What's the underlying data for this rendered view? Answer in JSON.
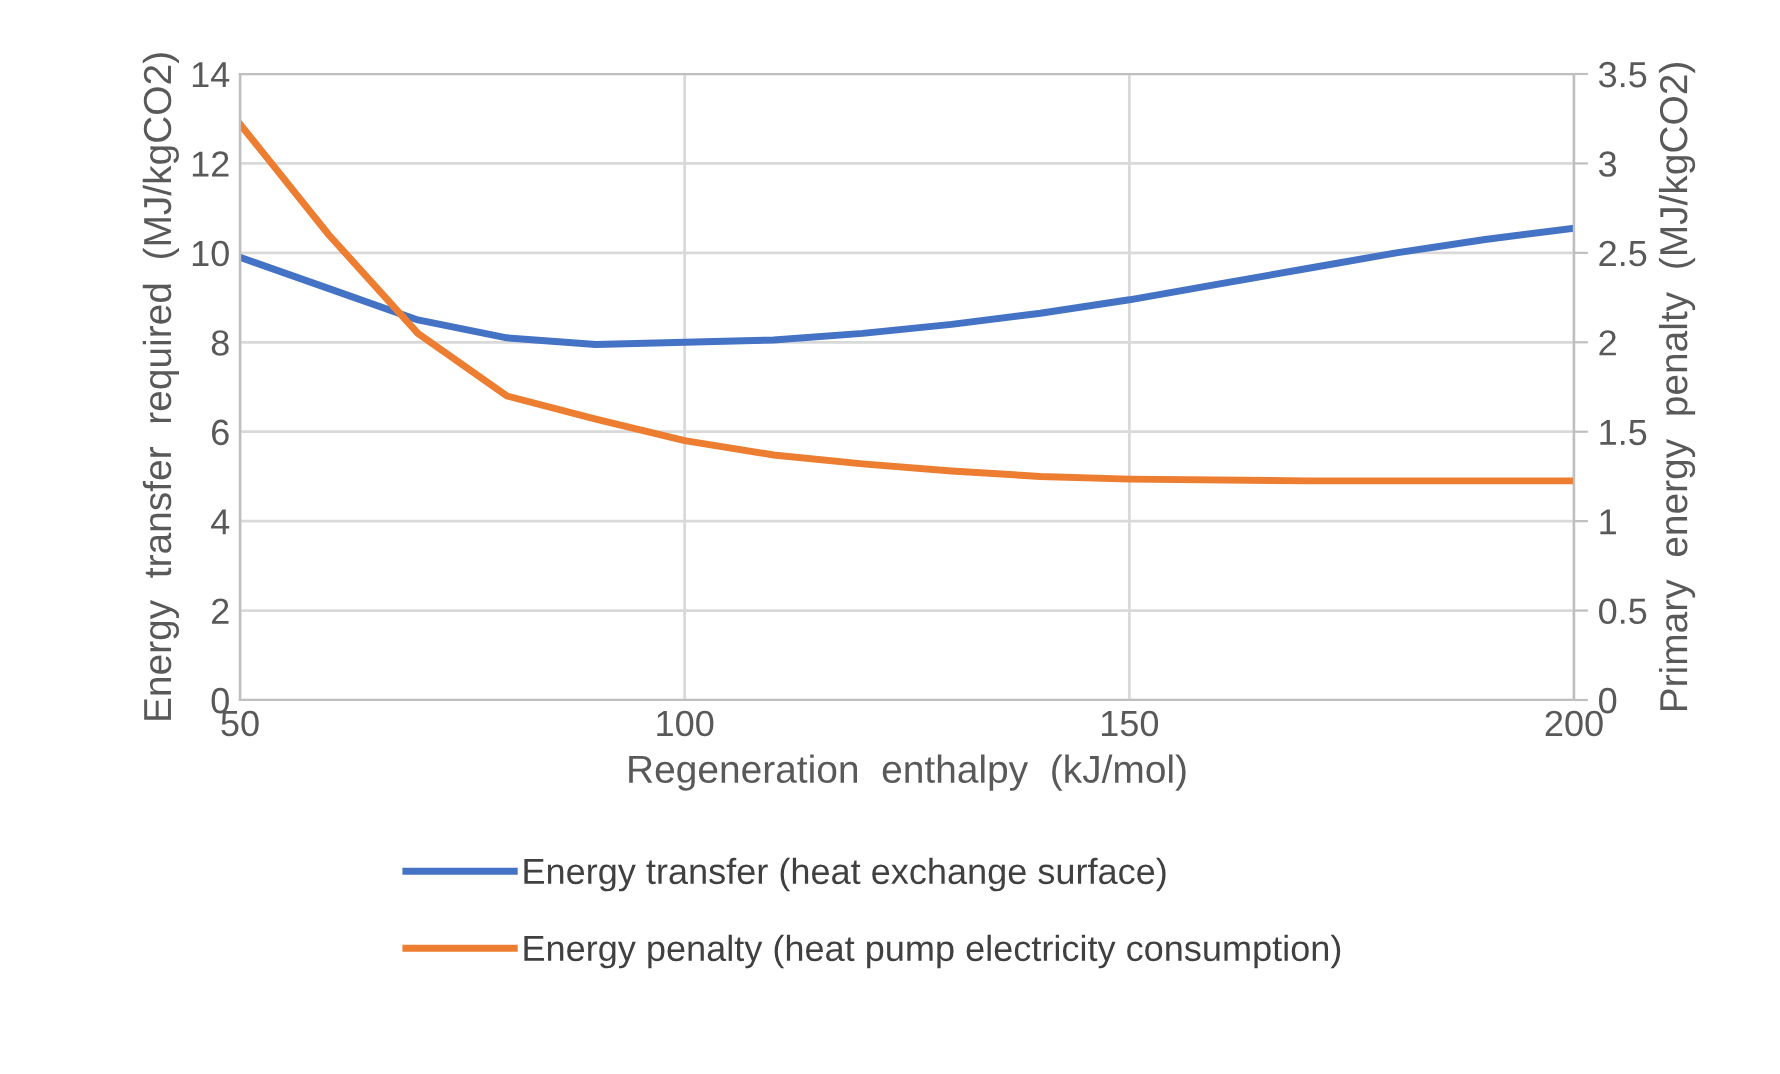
{
  "chart_data": {
    "type": "line",
    "xlabel": "Regeneration  enthalpy  (kJ/mol)",
    "ylabel": "Energy  transfer  required  (MJ/kgCO2)",
    "y2label": "Primary  energy  penalty  (MJ/kgCO2)",
    "xlim": [
      50,
      200
    ],
    "xticks": [
      50,
      100,
      150,
      200
    ],
    "ylim": [
      0,
      14
    ],
    "yticks": [
      0,
      2,
      4,
      6,
      8,
      10,
      12,
      14
    ],
    "y2lim": [
      0,
      3.5
    ],
    "y2ticks": [
      0,
      0.5,
      1,
      1.5,
      2,
      2.5,
      3,
      3.5
    ],
    "grid": true,
    "legend": "bottom",
    "marker": "none",
    "line_style": "solid",
    "series": [
      {
        "name": "Energy transfer (heat exchange surface)",
        "color": "#4472c4",
        "x": [
          50,
          60,
          70,
          80,
          90,
          100,
          110,
          120,
          130,
          140,
          150,
          160,
          170,
          180,
          190,
          200
        ],
        "values": [
          9.9,
          9.2,
          8.5,
          8.1,
          7.95,
          8.0,
          8.05,
          8.2,
          8.4,
          8.65,
          8.95,
          9.3,
          9.65,
          10.0,
          10.3,
          10.55
        ]
      },
      {
        "name": "Energy penalty (heat pump electricity consumption)",
        "color": "#ed7d31",
        "axis": "y2",
        "x": [
          50,
          60,
          70,
          80,
          90,
          100,
          110,
          120,
          130,
          140,
          150,
          170,
          200
        ],
        "values": [
          3.22,
          2.6,
          2.05,
          1.7,
          1.57,
          1.45,
          1.37,
          1.32,
          1.28,
          1.25,
          1.235,
          1.225,
          1.225
        ]
      }
    ]
  }
}
